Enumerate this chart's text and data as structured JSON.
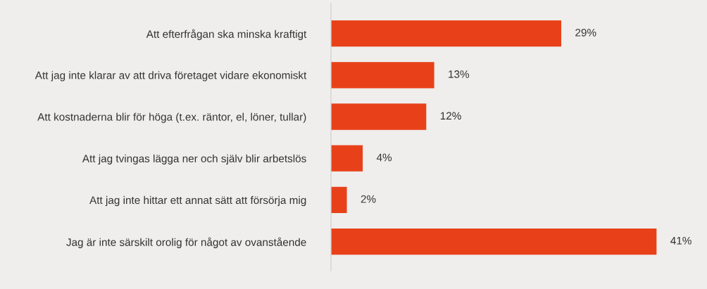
{
  "chart_data": {
    "type": "bar",
    "orientation": "horizontal",
    "categories": [
      "Att efterfrågan ska minska kraftigt",
      "Att jag inte klarar av att driva företaget vidare ekonomiskt",
      "Att kostnaderna blir för höga (t.ex. räntor, el, löner, tullar)",
      "Att jag tvingas lägga ner och själv blir arbetslös",
      "Att jag inte hittar ett annat sätt att försörja mig",
      "Jag är inte särskilt orolig för något av ovanstående"
    ],
    "values": [
      29,
      13,
      12,
      4,
      2,
      41
    ],
    "color": "#e8411a",
    "value_labels": [
      "29%",
      "13%",
      "12%",
      "4%",
      "2%",
      "41%"
    ],
    "tick_labels": "y",
    "grid": false,
    "legend": false
  }
}
